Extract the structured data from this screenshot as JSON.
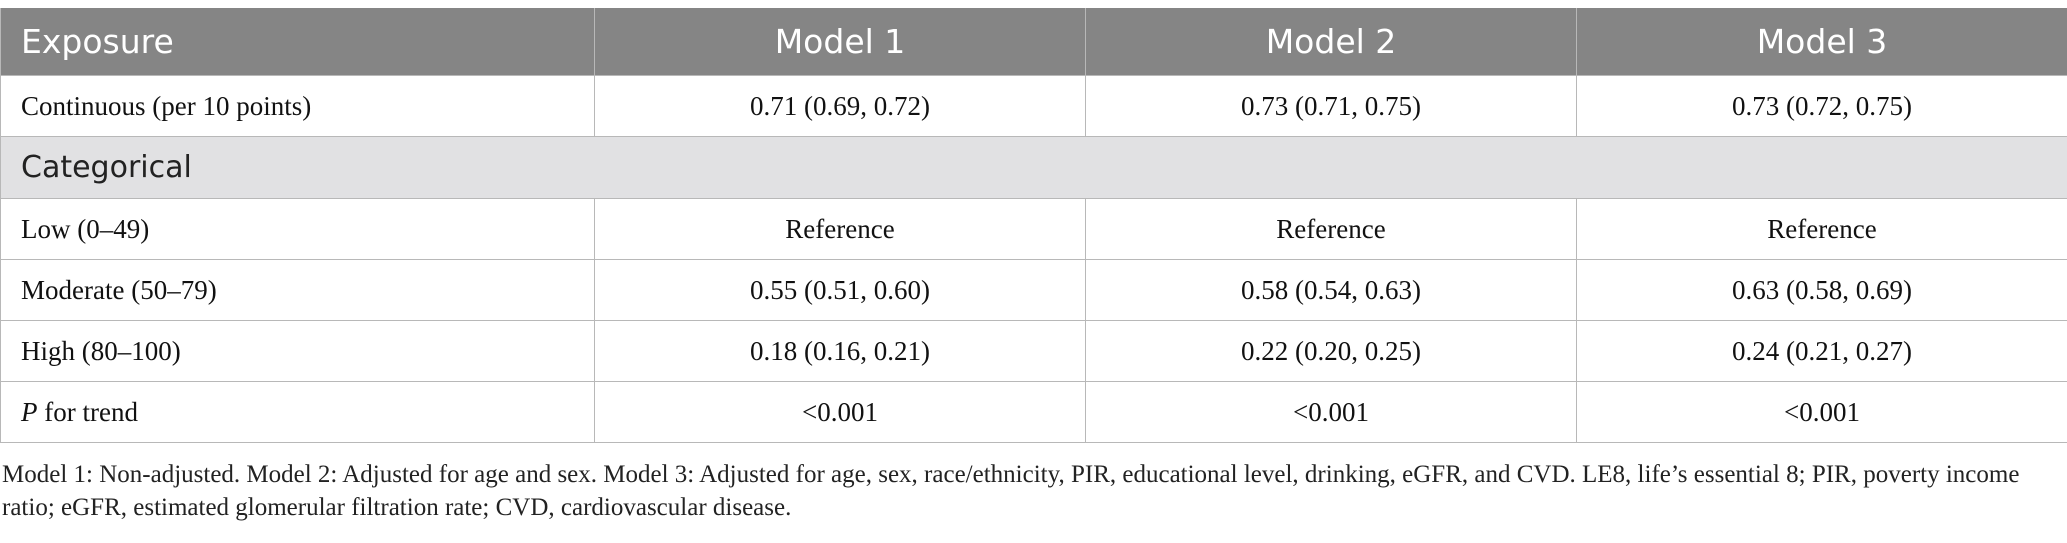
{
  "table": {
    "headers": [
      "Exposure",
      "Model 1",
      "Model 2",
      "Model 3"
    ],
    "rows": [
      {
        "label": "Continuous (per 10 points)",
        "values": [
          "0.71 (0.69, 0.72)",
          "0.73 (0.71, 0.75)",
          "0.73 (0.72, 0.75)"
        ]
      },
      {
        "section": "Categorical"
      },
      {
        "label": "Low (0–49)",
        "values": [
          "Reference",
          "Reference",
          "Reference"
        ]
      },
      {
        "label": "Moderate (50–79)",
        "values": [
          "0.55 (0.51, 0.60)",
          "0.58 (0.54, 0.63)",
          "0.63 (0.58, 0.69)"
        ]
      },
      {
        "label": "High (80–100)",
        "values": [
          "0.18 (0.16, 0.21)",
          "0.22 (0.20, 0.25)",
          "0.24 (0.21, 0.27)"
        ]
      },
      {
        "label_italic": "P",
        "label_rest": " for trend",
        "values": [
          "<0.001",
          "<0.001",
          "<0.001"
        ]
      }
    ]
  },
  "footnote": "Model 1: Non-adjusted. Model 2: Adjusted for age and sex. Model 3: Adjusted for age, sex, race/ethnicity, PIR, educational level, drinking, eGFR, and CVD. LE8, life’s essential 8; PIR, poverty income ratio; eGFR, estimated glomerular filtration rate; CVD, cardiovascular disease."
}
